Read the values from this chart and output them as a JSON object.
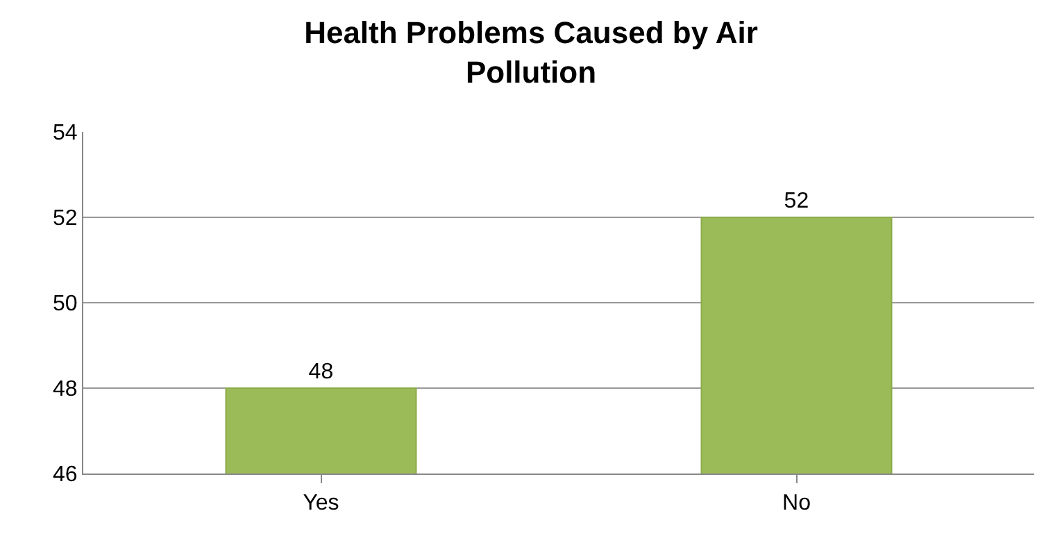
{
  "chart_data": {
    "type": "bar",
    "title": "Health Problems Caused by Air\nPollution",
    "categories": [
      "Yes",
      "No"
    ],
    "values": [
      48,
      52
    ],
    "color": "#9bbb59",
    "ylim": [
      46,
      54
    ],
    "yticks": [
      46,
      48,
      50,
      52,
      54
    ],
    "grid": "y",
    "data_labels": true
  }
}
